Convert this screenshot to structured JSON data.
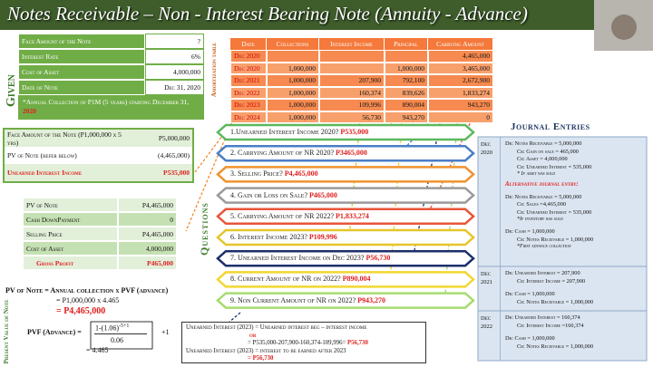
{
  "header": {
    "title": "Notes Receivable – Non - Interest Bearing Note (Annuity - Advance)"
  },
  "given": {
    "label": "Given",
    "rows": [
      [
        "Face Amount of the Note",
        "?"
      ],
      [
        "Interest Rate",
        "6%"
      ],
      [
        "Cost of Asset",
        "4,000,000"
      ],
      [
        "Date of Note",
        "Dec 31, 2020"
      ]
    ],
    "note": [
      "*Annual Collection of P1M (5 years) starting December 31, ",
      "2020"
    ]
  },
  "amortization": {
    "label": "Amortization table",
    "columns": [
      "Date",
      "Collections",
      "Interest Income",
      "Principal",
      "Carrying Amount"
    ],
    "rows": [
      [
        "Dec 2020",
        null,
        null,
        null,
        "4,465,000"
      ],
      [
        "Dec 2020",
        "1,000,000",
        null,
        "1,000,000",
        "3,465,000"
      ],
      [
        "Dec 2021",
        "1,000,000",
        "207,900",
        "792,100",
        "2,672,900"
      ],
      [
        "Dec 2022",
        "1,000,000",
        "160,374",
        "839,626",
        "1,833,274"
      ],
      [
        "Dec 2023",
        "1,000,000",
        "109,996",
        "890,004",
        "943,270"
      ],
      [
        "Dec 2024",
        "1,000,000",
        "56,730",
        "943,270",
        "0"
      ]
    ]
  },
  "face_box": {
    "rows": [
      [
        "Face Amount of the Note (P1,000,000 x 5 yrs)",
        "P5,000,000"
      ],
      [
        "PV of Note (refer below)",
        "(4,465,000)"
      ],
      [
        "Unearned Interest Income",
        "P535,000"
      ]
    ]
  },
  "pv_box": {
    "rows": [
      [
        "PV of Note",
        "P4,465,000"
      ],
      [
        "Cash DownPayment",
        "0"
      ],
      [
        "Selling Price",
        "P4,465,000"
      ],
      [
        "Cost of Asset",
        "4,000,000"
      ],
      [
        "Gross Profit",
        "P465,000"
      ]
    ]
  },
  "questions": {
    "label": "Questions",
    "items": [
      {
        "text": "1.Unearned Interest Income 2020? ",
        "answer": "P535,000"
      },
      {
        "text": "2. Carrying Amount of NR 2020? ",
        "answer": "P3465,000"
      },
      {
        "text": "3. Selling Price? ",
        "answer": "P4,465,000"
      },
      {
        "text": "4. Gain or Loss on Sale? ",
        "answer": "P465,000"
      },
      {
        "text": "5. Carrying Amount of NR 2022? ",
        "answer": "P1,833,274"
      },
      {
        "text": "6. Interest Income 2023? ",
        "answer": "P109,996"
      },
      {
        "text": "7. Unearned Interest Income on Dec 2023? ",
        "answer": "P56,730"
      },
      {
        "text": "8. Current Amount of NR on 2022? ",
        "answer": "P890,004"
      },
      {
        "text": "9. Non Current Amount of NR on 2022? ",
        "answer": "P943,270"
      }
    ]
  },
  "pv_formula": {
    "label": "Present Value of Note",
    "lines": [
      "PV of Note = Annual collection x PVF (advance)",
      "= P1,000,000 x 4.465",
      "= P4,465,000"
    ],
    "pvf_label": "PVF (Advance) =",
    "numerator": "1-(1.06)",
    "exponent": "-5+1",
    "denominator": "0.06",
    "plus": "+1",
    "result": "= 4.465"
  },
  "unearned_box": {
    "lines": [
      [
        "Unearned Interest (2023) = Unearned interest beg – interest income"
      ],
      [
        "or"
      ],
      [
        "= P535,000-207,900-160,374-109,996= ",
        "P56,730"
      ],
      [
        "Unearned Interest (2023) = interest to be earned after 2023"
      ],
      [
        "= P56,730"
      ]
    ]
  },
  "journal": {
    "title": "Journal Entries",
    "entries": [
      {
        "date": "Dec 2020",
        "lines": [
          "Dr: Notes Receivable = 5,000,000",
          "Cr: Gain on sale = 465,000",
          "Cr: Asset = 4,000,000",
          "Cr: Unearned Interest = 535,000",
          "* If asset was sold",
          "Alternative journal entry:",
          "Dr: Notes Receivable = 5,000,000",
          "Cr: Sales =4,465,000",
          "Cr: Unearned Interest = 535,000",
          "*If inventory was sold",
          "Dr: Cash = 1,000,000",
          "Cr: Notes Receivable = 1,000,000",
          "*First advance collection"
        ]
      },
      {
        "date": "Dec 2021",
        "lines": [
          "Dr: Unearned Interest = 207,900",
          "Cr: Interest Income = 207,900",
          "Dr: Cash = 1,000,000",
          "Cr: Notes Receivable = 1,000,000"
        ]
      },
      {
        "date": "Dec 2022",
        "lines": [
          "Dr: Unearned Interest = 160,374",
          "Cr: Interest Income =160,374",
          "Dr: Cash = 1,000,000",
          "Cr: Notes Receivable = 1,000,000"
        ]
      }
    ]
  }
}
